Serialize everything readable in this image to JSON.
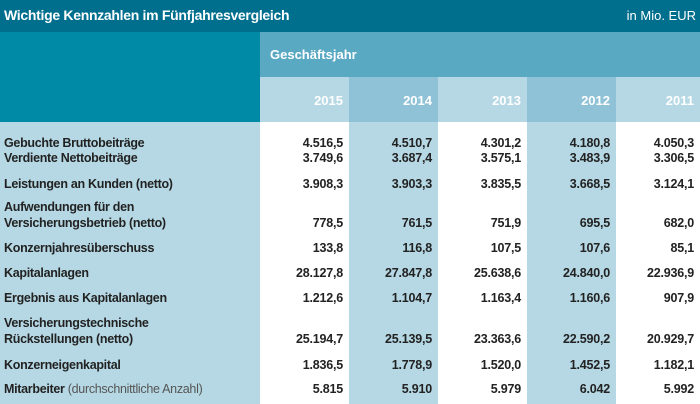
{
  "header": {
    "title": "Wichtige Kennzahlen im Fünfjahresvergleich",
    "unit": "in Mio. EUR",
    "group_label": "Geschäftsjahr"
  },
  "years": [
    "2015",
    "2014",
    "2013",
    "2012",
    "2011"
  ],
  "rows": [
    {
      "label": "Gebuchte Bruttobeiträge",
      "values": [
        "4.516,5",
        "4.510,7",
        "4.301,2",
        "4.180,8",
        "4.050,3"
      ]
    },
    {
      "label": "Verdiente Nettobeiträge",
      "values": [
        "3.749,6",
        "3.687,4",
        "3.575,1",
        "3.483,9",
        "3.306,5"
      ]
    },
    {
      "label": "Leistungen an Kunden (netto)",
      "values": [
        "3.908,3",
        "3.903,3",
        "3.835,5",
        "3.668,5",
        "3.124,1"
      ]
    },
    {
      "label": "Aufwendungen für den",
      "label2": "Versicherungsbetrieb (netto)",
      "values": [
        "778,5",
        "761,5",
        "751,9",
        "695,5",
        "682,0"
      ]
    },
    {
      "label": "Konzernjahresüberschuss",
      "values": [
        "133,8",
        "116,8",
        "107,5",
        "107,6",
        "85,1"
      ]
    },
    {
      "label": "Kapitalanlagen",
      "values": [
        "28.127,8",
        "27.847,8",
        "25.638,6",
        "24.840,0",
        "22.936,9"
      ]
    },
    {
      "label": "Ergebnis aus Kapitalanlagen",
      "values": [
        "1.212,6",
        "1.104,7",
        "1.163,4",
        "1.160,6",
        "907,9"
      ]
    },
    {
      "label": "Versicherungstechnische",
      "label2": "Rückstellungen (netto)",
      "values": [
        "25.194,7",
        "25.139,5",
        "23.363,6",
        "22.590,2",
        "20.929,7"
      ]
    },
    {
      "label": "Konzerneigenkapital",
      "values": [
        "1.836,5",
        "1.778,9",
        "1.520,0",
        "1.452,5",
        "1.182,1"
      ]
    },
    {
      "label": "Mitarbeiter",
      "label_suffix": "(durchschnittliche Anzahl)",
      "values": [
        "5.815",
        "5.910",
        "5.979",
        "6.042",
        "5.992"
      ]
    }
  ]
}
